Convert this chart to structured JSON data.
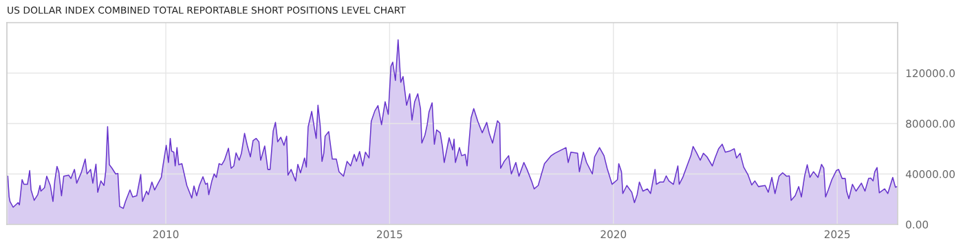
{
  "chart_data": {
    "type": "area",
    "title": "US DOLLAR INDEX COMBINED TOTAL REPORTABLE SHORT POSITIONS LEVEL CHART",
    "x": [
      2006.47,
      2006.5,
      2006.52,
      2006.59,
      2006.7,
      2006.73,
      2006.79,
      2006.83,
      2006.91,
      2006.96,
      2006.99,
      2007.06,
      2007.14,
      2007.19,
      2007.21,
      2007.29,
      2007.34,
      2007.42,
      2007.48,
      2007.52,
      2007.57,
      2007.61,
      2007.67,
      2007.72,
      2007.83,
      2007.88,
      2007.96,
      2008.01,
      2008.11,
      2008.2,
      2008.24,
      2008.32,
      2008.37,
      2008.44,
      2008.48,
      2008.55,
      2008.62,
      2008.66,
      2008.7,
      2008.74,
      2008.8,
      2008.88,
      2008.93,
      2008.97,
      2009.05,
      2009.1,
      2009.2,
      2009.26,
      2009.35,
      2009.44,
      2009.48,
      2009.57,
      2009.61,
      2009.69,
      2009.75,
      2009.83,
      2009.9,
      2009.94,
      2010.01,
      2010.06,
      2010.1,
      2010.13,
      2010.18,
      2010.21,
      2010.25,
      2010.29,
      2010.36,
      2010.47,
      2010.58,
      2010.63,
      2010.69,
      2010.75,
      2010.83,
      2010.89,
      2010.93,
      2010.96,
      2011.03,
      2011.08,
      2011.13,
      2011.19,
      2011.25,
      2011.31,
      2011.4,
      2011.46,
      2011.52,
      2011.57,
      2011.64,
      2011.69,
      2011.76,
      2011.82,
      2011.89,
      2011.95,
      2012.02,
      2012.08,
      2012.12,
      2012.21,
      2012.28,
      2012.33,
      2012.4,
      2012.45,
      2012.5,
      2012.57,
      2012.64,
      2012.7,
      2012.73,
      2012.8,
      2012.9,
      2012.95,
      2013.01,
      2013.1,
      2013.14,
      2013.18,
      2013.26,
      2013.32,
      2013.36,
      2013.4,
      2013.45,
      2013.49,
      2013.53,
      2013.56,
      2013.64,
      2013.72,
      2013.81,
      2013.87,
      2013.97,
      2014.05,
      2014.13,
      2014.21,
      2014.26,
      2014.33,
      2014.4,
      2014.46,
      2014.54,
      2014.59,
      2014.67,
      2014.74,
      2014.82,
      2014.9,
      2014.97,
      2015.03,
      2015.07,
      2015.13,
      2015.19,
      2015.25,
      2015.3,
      2015.38,
      2015.45,
      2015.5,
      2015.56,
      2015.63,
      2015.69,
      2015.72,
      2015.79,
      2015.84,
      2015.88,
      2015.95,
      2016.0,
      2016.05,
      2016.13,
      2016.18,
      2016.22,
      2016.33,
      2016.41,
      2016.44,
      2016.47,
      2016.56,
      2016.61,
      2016.69,
      2016.73,
      2016.82,
      2016.88,
      2016.97,
      2017.07,
      2017.17,
      2017.23,
      2017.3,
      2017.41,
      2017.46,
      2017.48,
      2017.56,
      2017.66,
      2017.72,
      2017.82,
      2017.89,
      2018.0,
      2018.07,
      2018.17,
      2018.23,
      2018.32,
      2018.46,
      2018.61,
      2018.69,
      2018.84,
      2018.94,
      2018.99,
      2019.05,
      2019.2,
      2019.24,
      2019.33,
      2019.4,
      2019.53,
      2019.58,
      2019.69,
      2019.79,
      2019.86,
      2019.97,
      2020.09,
      2020.12,
      2020.18,
      2020.21,
      2020.3,
      2020.41,
      2020.47,
      2020.53,
      2020.58,
      2020.66,
      2020.76,
      2020.83,
      2020.93,
      2020.96,
      2021.04,
      2021.12,
      2021.18,
      2021.24,
      2021.34,
      2021.44,
      2021.47,
      2021.55,
      2021.65,
      2021.73,
      2021.78,
      2021.86,
      2021.94,
      2022.01,
      2022.09,
      2022.21,
      2022.27,
      2022.35,
      2022.43,
      2022.5,
      2022.6,
      2022.7,
      2022.75,
      2022.83,
      2022.91,
      2023.01,
      2023.09,
      2023.16,
      2023.24,
      2023.39,
      2023.46,
      2023.54,
      2023.61,
      2023.7,
      2023.78,
      2023.87,
      2023.93,
      2023.97,
      2024.06,
      2024.14,
      2024.2,
      2024.27,
      2024.33,
      2024.39,
      2024.47,
      2024.57,
      2024.65,
      2024.7,
      2024.74,
      2024.8,
      2024.88,
      2024.98,
      2025.03,
      2025.11,
      2025.18,
      2025.21,
      2025.26,
      2025.34,
      2025.42,
      2025.54,
      2025.62,
      2025.7,
      2025.75,
      2025.8,
      2025.84,
      2025.89,
      2025.94,
      2026.06,
      2026.13,
      2026.24,
      2026.3,
      2026.34
    ],
    "series": [
      {
        "color": "#6633cc",
        "values": [
          38200,
          21800,
          18200,
          13600,
          17300,
          15500,
          35500,
          31800,
          31800,
          42700,
          27300,
          19100,
          23600,
          30900,
          26400,
          29100,
          38200,
          30900,
          18200,
          34500,
          46000,
          41800,
          22700,
          38200,
          39100,
          36400,
          43600,
          32700,
          40900,
          51800,
          40000,
          43600,
          32700,
          47800,
          25500,
          34500,
          30900,
          42700,
          77600,
          47300,
          44500,
          40000,
          40400,
          14200,
          12700,
          18200,
          27300,
          21800,
          22700,
          39600,
          18200,
          26400,
          23600,
          33600,
          27300,
          32700,
          37300,
          47300,
          62700,
          49100,
          68200,
          58200,
          57300,
          46400,
          60900,
          47300,
          48200,
          30900,
          20900,
          30500,
          22700,
          30900,
          37800,
          31800,
          32700,
          23600,
          34500,
          40000,
          37300,
          48200,
          47300,
          50900,
          60400,
          44500,
          46400,
          56700,
          50900,
          56400,
          72200,
          62700,
          53600,
          66400,
          68200,
          65500,
          50900,
          62200,
          43600,
          43600,
          74200,
          80900,
          65500,
          69100,
          62700,
          70000,
          39100,
          43600,
          34500,
          47600,
          40900,
          52700,
          45500,
          77300,
          89600,
          76400,
          68200,
          94500,
          78200,
          50000,
          56400,
          70000,
          73600,
          51800,
          51800,
          41800,
          38200,
          50000,
          46400,
          55500,
          50000,
          57800,
          46400,
          57300,
          52700,
          81800,
          90000,
          94200,
          79100,
          97300,
          87300,
          125400,
          128700,
          114200,
          146400,
          112700,
          117300,
          94500,
          103600,
          82700,
          97300,
          103600,
          91800,
          64500,
          70900,
          79100,
          89100,
          96400,
          63600,
          74900,
          72700,
          61800,
          49100,
          68700,
          59100,
          67600,
          49100,
          60900,
          54500,
          55500,
          46400,
          84500,
          91800,
          81800,
          72700,
          80900,
          71800,
          64500,
          82200,
          80000,
          44500,
          50000,
          54500,
          40000,
          49100,
          38200,
          49100,
          43600,
          34500,
          28200,
          30900,
          48200,
          54500,
          56400,
          59100,
          60900,
          49100,
          57300,
          56400,
          41800,
          57300,
          49100,
          40000,
          53600,
          60900,
          54500,
          44500,
          31800,
          35500,
          48200,
          41800,
          24500,
          30900,
          25500,
          17300,
          23600,
          33600,
          26400,
          28200,
          24500,
          43600,
          31800,
          33600,
          33600,
          38500,
          34500,
          31800,
          46400,
          31800,
          37300,
          46900,
          54500,
          61800,
          56700,
          50900,
          56400,
          53600,
          46400,
          52700,
          60000,
          63600,
          57300,
          58200,
          60000,
          52700,
          56400,
          45500,
          39100,
          31300,
          34500,
          30000,
          30900,
          25500,
          37300,
          24500,
          38200,
          40900,
          38200,
          38500,
          19100,
          22700,
          30000,
          21800,
          38200,
          47300,
          37300,
          41800,
          37300,
          47600,
          44500,
          21800,
          27300,
          35500,
          42700,
          43600,
          36400,
          36400,
          26400,
          20400,
          31800,
          26400,
          32700,
          26400,
          36400,
          36700,
          34500,
          41800,
          45100,
          25100,
          28200,
          24500,
          37300,
          29500,
          30000
        ]
      }
    ],
    "xlim": [
      2006.45,
      2026.35
    ],
    "xticks": [
      2010,
      2015,
      2020,
      2025
    ],
    "ylim": [
      0,
      160000
    ],
    "yticks": [
      {
        "value": 0,
        "label": "0.00"
      },
      {
        "value": 40000,
        "label": "40000.00"
      },
      {
        "value": 80000,
        "label": "80000.00"
      },
      {
        "value": 120000,
        "label": "120000.0"
      }
    ],
    "grid": true
  }
}
